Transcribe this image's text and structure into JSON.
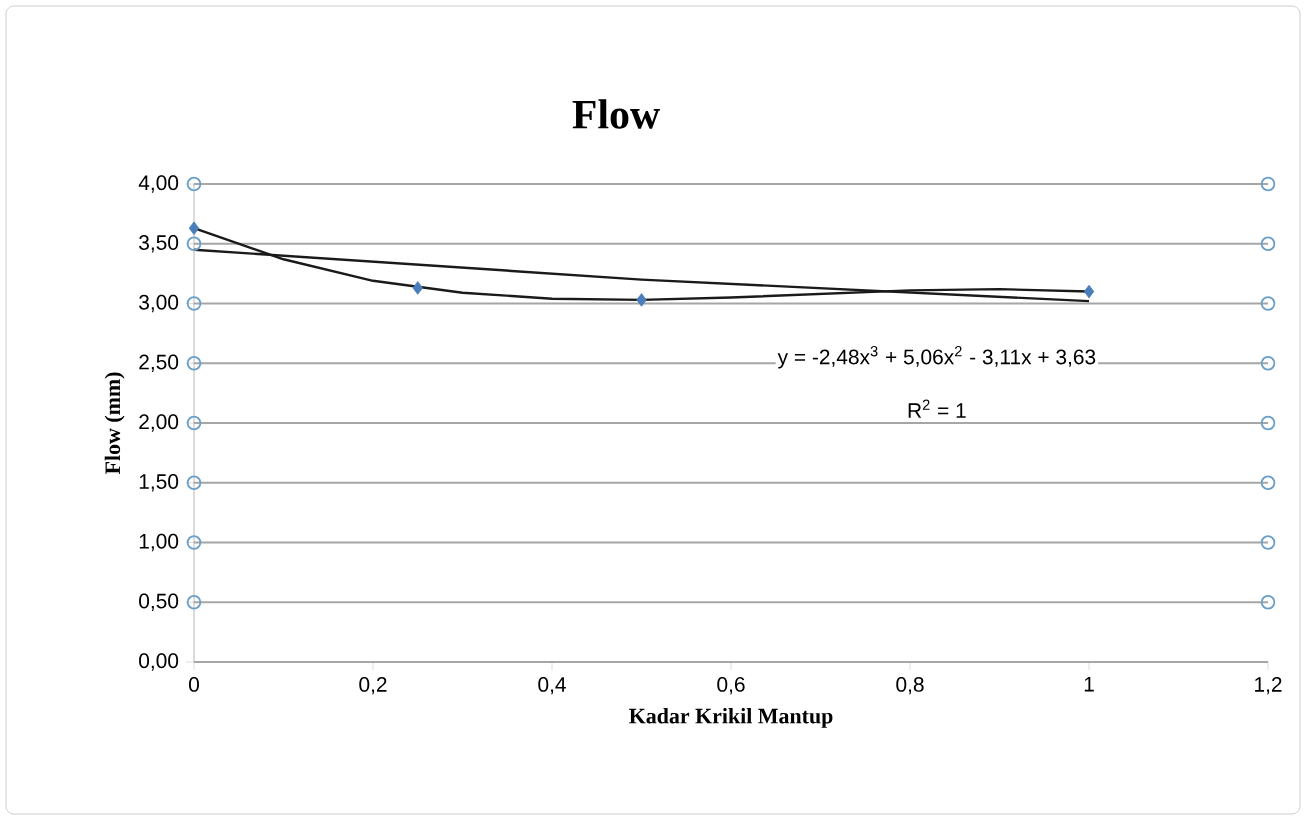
{
  "chart_data": {
    "type": "scatter",
    "title": "Flow",
    "xlabel": "Kadar Krikil Mantup",
    "ylabel": "Flow  (mm)",
    "annotations": [
      "y = -2,48x$^{3}$ + 5,06x$^{2}$ - 3,11x + 3,63",
      "R$^{2}$ = 1"
    ],
    "series": [
      {
        "type": "line",
        "color": "#1a1a1a",
        "marker": "none",
        "x": [
          0,
          0.1,
          0.2,
          0.3,
          0.4,
          0.5,
          0.6,
          0.7,
          0.8,
          0.9,
          1
        ],
        "values": [
          3.63,
          3.37,
          3.19,
          3.09,
          3.04,
          3.03,
          3.05,
          3.08,
          3.11,
          3.12,
          3.1
        ]
      },
      {
        "type": "line",
        "color": "#1a1a1a",
        "marker": "none",
        "x": [
          0,
          0.5,
          1
        ],
        "values": [
          3.45,
          3.2,
          3.02
        ]
      },
      {
        "color": "#4a7ebb",
        "marker": "diamond",
        "x": [
          0,
          0.25,
          0.5,
          1
        ],
        "values": [
          3.63,
          3.13,
          3.03,
          3.1
        ]
      },
      {
        "type": "scatter",
        "color": "#6a9fc8",
        "marker": "circle",
        "x": [
          0,
          0,
          0,
          0,
          0,
          0,
          0,
          0
        ],
        "values": [
          0.5,
          1,
          1.5,
          2,
          2.5,
          3,
          3.5,
          4
        ]
      },
      {
        "type": "scatter",
        "color": "#6a9fc8",
        "marker": "circle",
        "x": [
          1.2,
          1.2,
          1.2,
          1.2,
          1.2,
          1.2,
          1.2,
          1.2
        ],
        "values": [
          0.5,
          1,
          1.5,
          2,
          2.5,
          3,
          3.5,
          4
        ]
      }
    ],
    "xlim": [
      0,
      1.2
    ],
    "ylim": [
      0,
      4
    ],
    "xticks": [
      0,
      {
        "value": 0.2,
        "label": "0,2"
      },
      {
        "value": 0.4,
        "label": "0,4"
      },
      {
        "value": 0.6,
        "label": "0,6"
      },
      {
        "value": 0.8,
        "label": "0,8"
      },
      1,
      {
        "value": 1.2,
        "label": "1,2"
      }
    ],
    "yticks": [
      {
        "value": 0,
        "label": "0,00"
      },
      {
        "value": 0.5,
        "label": "0,50"
      },
      {
        "value": 1,
        "label": "1,00"
      },
      {
        "value": 1.5,
        "label": "1,50"
      },
      {
        "value": 2,
        "label": "2,00"
      },
      {
        "value": 2.5,
        "label": "2,50"
      },
      {
        "value": 3,
        "label": "3,00"
      },
      {
        "value": 3.5,
        "label": "3,50"
      },
      {
        "value": 4,
        "label": "4,00"
      }
    ],
    "grid": "y"
  }
}
